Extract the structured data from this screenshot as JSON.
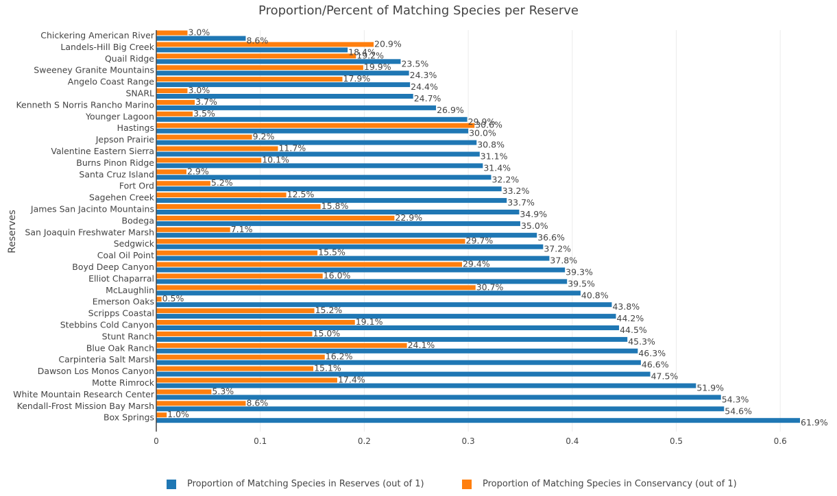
{
  "chart_data": {
    "type": "bar",
    "orientation": "horizontal",
    "title": "Proportion/Percent of Matching Species per Reserve",
    "ylabel": "Reserves",
    "xlabel": "",
    "xlim": [
      0,
      0.63
    ],
    "xticks": [
      0,
      0.1,
      0.2,
      0.3,
      0.4,
      0.5,
      0.6
    ],
    "xtick_labels": [
      "0",
      "0.1",
      "0.2",
      "0.3",
      "0.4",
      "0.5",
      "0.6"
    ],
    "grid": true,
    "legend_position": "bottom",
    "categories": [
      "Chickering American River",
      "Landels-Hill Big Creek",
      "Quail Ridge",
      "Sweeney Granite Mountains",
      "Angelo Coast Range",
      "SNARL",
      "Kenneth S Norris Rancho Marino",
      "Younger Lagoon",
      "Hastings",
      "Jepson Prairie",
      "Valentine Eastern Sierra",
      "Burns Pinon Ridge",
      "Santa Cruz Island",
      "Fort Ord",
      "Sagehen Creek",
      "James San Jacinto Mountains",
      "Bodega",
      "San Joaquin Freshwater Marsh",
      "Sedgwick",
      "Coal Oil Point",
      "Boyd Deep Canyon",
      "Elliot Chaparral",
      "McLaughlin",
      "Emerson Oaks",
      "Scripps Coastal",
      "Stebbins Cold Canyon",
      "Stunt Ranch",
      "Blue Oak Ranch",
      "Carpinteria Salt Marsh",
      "Dawson Los Monos Canyon",
      "Motte Rimrock",
      "White Mountain Research Center",
      "Kendall-Frost Mission Bay Marsh",
      "Box Springs"
    ],
    "series": [
      {
        "name": "Proportion of Matching Species in Reserves (out of 1)",
        "color": "#1f77b4",
        "values": [
          0.086,
          0.184,
          0.235,
          0.243,
          0.244,
          0.247,
          0.269,
          0.299,
          0.3,
          0.308,
          0.311,
          0.314,
          0.322,
          0.332,
          0.337,
          0.349,
          0.35,
          0.366,
          0.372,
          0.378,
          0.393,
          0.395,
          0.408,
          0.438,
          0.442,
          0.445,
          0.453,
          0.463,
          0.466,
          0.475,
          0.519,
          0.543,
          0.546,
          0.619
        ],
        "labels": [
          "8.6%",
          "18.4%",
          "23.5%",
          "24.3%",
          "24.4%",
          "24.7%",
          "26.9%",
          "29.9%",
          "30.0%",
          "30.8%",
          "31.1%",
          "31.4%",
          "32.2%",
          "33.2%",
          "33.7%",
          "34.9%",
          "35.0%",
          "36.6%",
          "37.2%",
          "37.8%",
          "39.3%",
          "39.5%",
          "40.8%",
          "43.8%",
          "44.2%",
          "44.5%",
          "45.3%",
          "46.3%",
          "46.6%",
          "47.5%",
          "51.9%",
          "54.3%",
          "54.6%",
          "61.9%"
        ]
      },
      {
        "name": "Proportion of Matching Species in Conservancy (out of 1)",
        "color": "#ff7f0e",
        "values": [
          0.03,
          0.209,
          0.192,
          0.199,
          0.179,
          0.03,
          0.037,
          0.035,
          0.306,
          0.092,
          0.117,
          0.101,
          0.029,
          0.052,
          0.125,
          0.158,
          0.229,
          0.071,
          0.297,
          0.155,
          0.294,
          0.16,
          0.307,
          0.005,
          0.152,
          0.191,
          0.15,
          0.241,
          0.162,
          0.151,
          0.174,
          0.053,
          0.086,
          0.01
        ],
        "labels": [
          "3.0%",
          "20.9%",
          "19.2%",
          "19.9%",
          "17.9%",
          "3.0%",
          "3.7%",
          "3.5%",
          "30.6%",
          "9.2%",
          "11.7%",
          "10.1%",
          "2.9%",
          "5.2%",
          "12.5%",
          "15.8%",
          "22.9%",
          "7.1%",
          "29.7%",
          "15.5%",
          "29.4%",
          "16.0%",
          "30.7%",
          "0.5%",
          "15.2%",
          "19.1%",
          "15.0%",
          "24.1%",
          "16.2%",
          "15.1%",
          "17.4%",
          "5.3%",
          "8.6%",
          "1.0%"
        ]
      }
    ]
  }
}
